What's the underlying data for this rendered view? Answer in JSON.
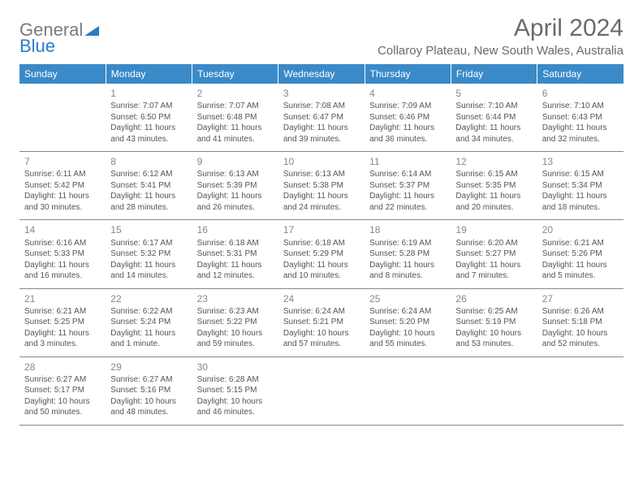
{
  "logo": {
    "text1": "General",
    "text2": "Blue"
  },
  "title": "April 2024",
  "subtitle": "Collaroy Plateau, New South Wales, Australia",
  "colors": {
    "header_bg": "#3a8ac8",
    "header_text": "#ffffff",
    "day_number": "#888888",
    "body_text": "#555555",
    "title_text": "#6b6b6b",
    "logo_gray": "#7a7a7a",
    "logo_blue": "#2b7cc4",
    "cell_border": "#888888"
  },
  "weekdays": [
    "Sunday",
    "Monday",
    "Tuesday",
    "Wednesday",
    "Thursday",
    "Friday",
    "Saturday"
  ],
  "weeks": [
    [
      null,
      {
        "d": "1",
        "sr": "Sunrise: 7:07 AM",
        "ss": "Sunset: 6:50 PM",
        "dl": "Daylight: 11 hours and 43 minutes."
      },
      {
        "d": "2",
        "sr": "Sunrise: 7:07 AM",
        "ss": "Sunset: 6:48 PM",
        "dl": "Daylight: 11 hours and 41 minutes."
      },
      {
        "d": "3",
        "sr": "Sunrise: 7:08 AM",
        "ss": "Sunset: 6:47 PM",
        "dl": "Daylight: 11 hours and 39 minutes."
      },
      {
        "d": "4",
        "sr": "Sunrise: 7:09 AM",
        "ss": "Sunset: 6:46 PM",
        "dl": "Daylight: 11 hours and 36 minutes."
      },
      {
        "d": "5",
        "sr": "Sunrise: 7:10 AM",
        "ss": "Sunset: 6:44 PM",
        "dl": "Daylight: 11 hours and 34 minutes."
      },
      {
        "d": "6",
        "sr": "Sunrise: 7:10 AM",
        "ss": "Sunset: 6:43 PM",
        "dl": "Daylight: 11 hours and 32 minutes."
      }
    ],
    [
      {
        "d": "7",
        "sr": "Sunrise: 6:11 AM",
        "ss": "Sunset: 5:42 PM",
        "dl": "Daylight: 11 hours and 30 minutes."
      },
      {
        "d": "8",
        "sr": "Sunrise: 6:12 AM",
        "ss": "Sunset: 5:41 PM",
        "dl": "Daylight: 11 hours and 28 minutes."
      },
      {
        "d": "9",
        "sr": "Sunrise: 6:13 AM",
        "ss": "Sunset: 5:39 PM",
        "dl": "Daylight: 11 hours and 26 minutes."
      },
      {
        "d": "10",
        "sr": "Sunrise: 6:13 AM",
        "ss": "Sunset: 5:38 PM",
        "dl": "Daylight: 11 hours and 24 minutes."
      },
      {
        "d": "11",
        "sr": "Sunrise: 6:14 AM",
        "ss": "Sunset: 5:37 PM",
        "dl": "Daylight: 11 hours and 22 minutes."
      },
      {
        "d": "12",
        "sr": "Sunrise: 6:15 AM",
        "ss": "Sunset: 5:35 PM",
        "dl": "Daylight: 11 hours and 20 minutes."
      },
      {
        "d": "13",
        "sr": "Sunrise: 6:15 AM",
        "ss": "Sunset: 5:34 PM",
        "dl": "Daylight: 11 hours and 18 minutes."
      }
    ],
    [
      {
        "d": "14",
        "sr": "Sunrise: 6:16 AM",
        "ss": "Sunset: 5:33 PM",
        "dl": "Daylight: 11 hours and 16 minutes."
      },
      {
        "d": "15",
        "sr": "Sunrise: 6:17 AM",
        "ss": "Sunset: 5:32 PM",
        "dl": "Daylight: 11 hours and 14 minutes."
      },
      {
        "d": "16",
        "sr": "Sunrise: 6:18 AM",
        "ss": "Sunset: 5:31 PM",
        "dl": "Daylight: 11 hours and 12 minutes."
      },
      {
        "d": "17",
        "sr": "Sunrise: 6:18 AM",
        "ss": "Sunset: 5:29 PM",
        "dl": "Daylight: 11 hours and 10 minutes."
      },
      {
        "d": "18",
        "sr": "Sunrise: 6:19 AM",
        "ss": "Sunset: 5:28 PM",
        "dl": "Daylight: 11 hours and 8 minutes."
      },
      {
        "d": "19",
        "sr": "Sunrise: 6:20 AM",
        "ss": "Sunset: 5:27 PM",
        "dl": "Daylight: 11 hours and 7 minutes."
      },
      {
        "d": "20",
        "sr": "Sunrise: 6:21 AM",
        "ss": "Sunset: 5:26 PM",
        "dl": "Daylight: 11 hours and 5 minutes."
      }
    ],
    [
      {
        "d": "21",
        "sr": "Sunrise: 6:21 AM",
        "ss": "Sunset: 5:25 PM",
        "dl": "Daylight: 11 hours and 3 minutes."
      },
      {
        "d": "22",
        "sr": "Sunrise: 6:22 AM",
        "ss": "Sunset: 5:24 PM",
        "dl": "Daylight: 11 hours and 1 minute."
      },
      {
        "d": "23",
        "sr": "Sunrise: 6:23 AM",
        "ss": "Sunset: 5:22 PM",
        "dl": "Daylight: 10 hours and 59 minutes."
      },
      {
        "d": "24",
        "sr": "Sunrise: 6:24 AM",
        "ss": "Sunset: 5:21 PM",
        "dl": "Daylight: 10 hours and 57 minutes."
      },
      {
        "d": "25",
        "sr": "Sunrise: 6:24 AM",
        "ss": "Sunset: 5:20 PM",
        "dl": "Daylight: 10 hours and 55 minutes."
      },
      {
        "d": "26",
        "sr": "Sunrise: 6:25 AM",
        "ss": "Sunset: 5:19 PM",
        "dl": "Daylight: 10 hours and 53 minutes."
      },
      {
        "d": "27",
        "sr": "Sunrise: 6:26 AM",
        "ss": "Sunset: 5:18 PM",
        "dl": "Daylight: 10 hours and 52 minutes."
      }
    ],
    [
      {
        "d": "28",
        "sr": "Sunrise: 6:27 AM",
        "ss": "Sunset: 5:17 PM",
        "dl": "Daylight: 10 hours and 50 minutes."
      },
      {
        "d": "29",
        "sr": "Sunrise: 6:27 AM",
        "ss": "Sunset: 5:16 PM",
        "dl": "Daylight: 10 hours and 48 minutes."
      },
      {
        "d": "30",
        "sr": "Sunrise: 6:28 AM",
        "ss": "Sunset: 5:15 PM",
        "dl": "Daylight: 10 hours and 46 minutes."
      },
      null,
      null,
      null,
      null
    ]
  ]
}
